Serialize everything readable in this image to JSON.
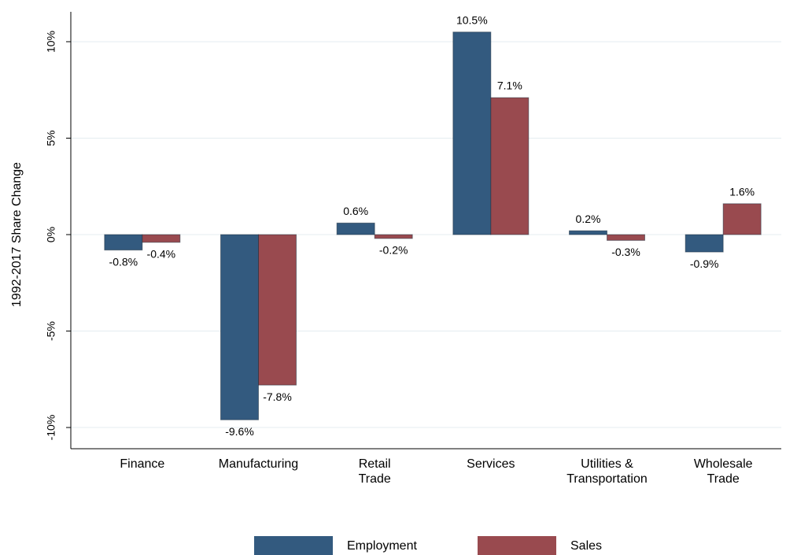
{
  "chart_data": {
    "type": "bar",
    "y_label": "1992-2017  Share Change",
    "categories": [
      "Finance",
      "Manufacturing",
      "Retail\nTrade",
      "Services",
      "Utilities &\nTransportation",
      "Wholesale\nTrade"
    ],
    "series": [
      {
        "name": "Employment",
        "color": "#335a7f",
        "values": [
          -0.8,
          -9.6,
          0.6,
          10.5,
          0.2,
          -0.9
        ],
        "value_labels": [
          "-0.8%",
          "-9.6%",
          "0.6%",
          "10.5%",
          "0.2%",
          "-0.9%"
        ]
      },
      {
        "name": "Sales",
        "color": "#994a4f",
        "values": [
          -0.4,
          -7.8,
          -0.2,
          7.1,
          -0.3,
          1.6
        ],
        "value_labels": [
          "-0.4%",
          "-7.8%",
          "-0.2%",
          "7.1%",
          "-0.3%",
          "1.6%"
        ]
      }
    ],
    "ylim": [
      -11.1,
      11.55
    ],
    "yticks": [
      {
        "value": -10,
        "label": "-10%"
      },
      {
        "value": -5,
        "label": "-5%"
      },
      {
        "value": 0,
        "label": "0%"
      },
      {
        "value": 5,
        "label": "5%"
      },
      {
        "value": 10,
        "label": "10%"
      }
    ],
    "grid": true,
    "legend": "bottom"
  }
}
